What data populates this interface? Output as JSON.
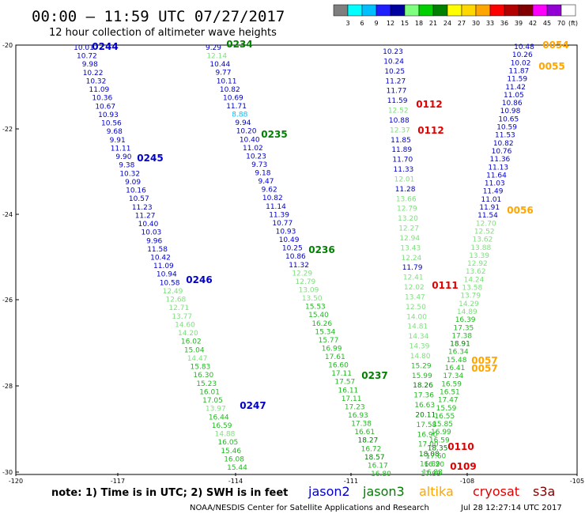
{
  "header": {
    "title": "00:00 — 11:59 UTC 07/27/2017",
    "subtitle": "12 hour collection of altimeter wave heights"
  },
  "legend": {
    "unit": "(ft)",
    "colors": [
      "#7f7f7f",
      "#00ffff",
      "#00bfff",
      "#1e1eff",
      "#0000a0",
      "#7fff7f",
      "#00d000",
      "#008000",
      "#ffff00",
      "#ffd700",
      "#ffa500",
      "#ff0000",
      "#b20000",
      "#800000",
      "#ff00ff",
      "#9400d3",
      "#ffffff"
    ],
    "labels": [
      "3",
      "6",
      "9",
      "12",
      "15",
      "18",
      "21",
      "24",
      "27",
      "30",
      "33",
      "36",
      "39",
      "42",
      "45",
      "70"
    ]
  },
  "axes": {
    "x_labels": [
      "-120",
      "-117",
      "-114",
      "-111",
      "-108",
      "-105"
    ],
    "y_labels": [
      "-20",
      "-22",
      "-24",
      "-26",
      "-28",
      "-30"
    ]
  },
  "tracks": [
    {
      "id": "0244",
      "mission": "jason2",
      "color": "#0000c8",
      "label_color": "#0000c8",
      "values": [
        "10.01",
        "10.72",
        "9.98",
        "10.22",
        "10.32",
        "11.09",
        "10.36",
        "10.67",
        "10.93",
        "10.56",
        "9.68",
        "9.91",
        "11.11",
        "9.90",
        "9.38",
        "10.32",
        "9.09",
        "10.16",
        "10.57",
        "11.23",
        "11.27",
        "10.40",
        "10.03",
        "9.96",
        "11.58",
        "10.42",
        "11.09",
        "10.94",
        "10.58",
        "12.49",
        "12.68",
        "12.71",
        "13.77",
        "14.60",
        "14.20",
        "16.02",
        "15.04",
        "14.47",
        "15.83",
        "16.30",
        "15.23",
        "16.01",
        "17.05",
        "13.97",
        "16.44",
        "16.59",
        "14.88",
        "16.05",
        "15.46",
        "16.08",
        "15.44"
      ]
    },
    {
      "id": "0234",
      "mission": "jason3",
      "color": "#0000c8",
      "label_color": "#008000",
      "values": [
        "9.29",
        "12.14",
        "10.44",
        "9.77",
        "10.11",
        "10.82",
        "10.69",
        "11.71",
        "8.88",
        "9.94",
        "10.20",
        "10.40",
        "11.02",
        "10.23",
        "9.73",
        "9.18",
        "9.47",
        "9.62",
        "10.82",
        "11.14",
        "11.39",
        "10.77",
        "10.93",
        "10.49",
        "10.25",
        "10.86",
        "11.32",
        "12.29",
        "12.79",
        "13.09",
        "13.50",
        "15.53",
        "15.40",
        "16.26",
        "15.34",
        "15.77",
        "16.99",
        "17.61",
        "16.60",
        "17.11",
        "17.57",
        "16.11",
        "17.11",
        "17.23",
        "16.93",
        "17.38",
        "16.61",
        "18.27",
        "16.72",
        "18.57",
        "16.17",
        "16.80"
      ]
    },
    {
      "id": "0112",
      "mission": "cryosat",
      "color": "#0000c8",
      "label_color": "#e00000",
      "values": [
        "10.23",
        "10.24",
        "10.25",
        "11.27",
        "11.77",
        "11.59",
        "12.52",
        "10.88",
        "12.37",
        "11.85",
        "11.89",
        "11.70",
        "11.33",
        "12.01",
        "11.28",
        "13.66",
        "12.79",
        "13.20",
        "12.27",
        "12.94",
        "13.43",
        "12.24",
        "11.79",
        "12.41",
        "12.02",
        "13.47",
        "12.50",
        "14.00",
        "14.81",
        "14.34",
        "14.39",
        "14.80",
        "15.29",
        "15.99",
        "18.26",
        "17.36",
        "16.63",
        "20.11",
        "17.58",
        "16.90",
        "17.00",
        "18.08",
        "16.89",
        "17.99"
      ]
    },
    {
      "id": "0054",
      "mission": "altika",
      "color": "#0000c8",
      "label_color": "#ffa500",
      "values": [
        "10.48",
        "10.26",
        "10.02",
        "11.87",
        "11.59",
        "11.42",
        "11.05",
        "10.86",
        "10.98",
        "10.65",
        "10.59",
        "11.53",
        "10.82",
        "10.76",
        "11.36",
        "11.13",
        "11.64",
        "11.03",
        "11.49",
        "11.01",
        "11.91",
        "11.54",
        "12.70",
        "12.52",
        "13.62",
        "13.88",
        "13.39",
        "12.92",
        "13.62",
        "14.24",
        "13.58",
        "13.79",
        "14.29",
        "14.89",
        "16.39",
        "17.35",
        "17.38",
        "18.91",
        "16.34",
        "15.48",
        "16.41",
        "17.34",
        "16.59",
        "16.51",
        "17.47",
        "15.59",
        "16.55",
        "15.85",
        "16.99",
        "16.59",
        "18.35",
        "17.60",
        "16.20",
        "16.88"
      ]
    }
  ],
  "track_labels": [
    {
      "text": "0244",
      "color": "#0000c8"
    },
    {
      "text": "0245",
      "color": "#0000c8"
    },
    {
      "text": "0246",
      "color": "#0000c8"
    },
    {
      "text": "0247",
      "color": "#0000c8"
    },
    {
      "text": "0234",
      "color": "#008000"
    },
    {
      "text": "0235",
      "color": "#008000"
    },
    {
      "text": "0236",
      "color": "#008000"
    },
    {
      "text": "0237",
      "color": "#008000"
    },
    {
      "text": "0112",
      "color": "#e00000"
    },
    {
      "text": "0112",
      "color": "#e00000"
    },
    {
      "text": "0111",
      "color": "#e00000"
    },
    {
      "text": "0110",
      "color": "#e00000"
    },
    {
      "text": "0109",
      "color": "#e00000"
    },
    {
      "text": "0054",
      "color": "#ffa500"
    },
    {
      "text": "0055",
      "color": "#ffa500"
    },
    {
      "text": "0056",
      "color": "#ffa500"
    },
    {
      "text": "0057",
      "color": "#ffa500"
    },
    {
      "text": "0057",
      "color": "#ffa500"
    }
  ],
  "footer": {
    "note": "note: 1) Time is in UTC; 2) SWH is in feet",
    "missions": [
      {
        "name": "jason2",
        "color": "#0000c8"
      },
      {
        "name": "jason3",
        "color": "#008000"
      },
      {
        "name": "altika",
        "color": "#ffa500"
      },
      {
        "name": "cryosat",
        "color": "#e00000"
      },
      {
        "name": "s3a",
        "color": "#800000"
      }
    ],
    "credit": "NOAA/NESDIS Center for Satellite Applications and Research",
    "timestamp": "Jul 28 12:27:14 UTC 2017"
  }
}
